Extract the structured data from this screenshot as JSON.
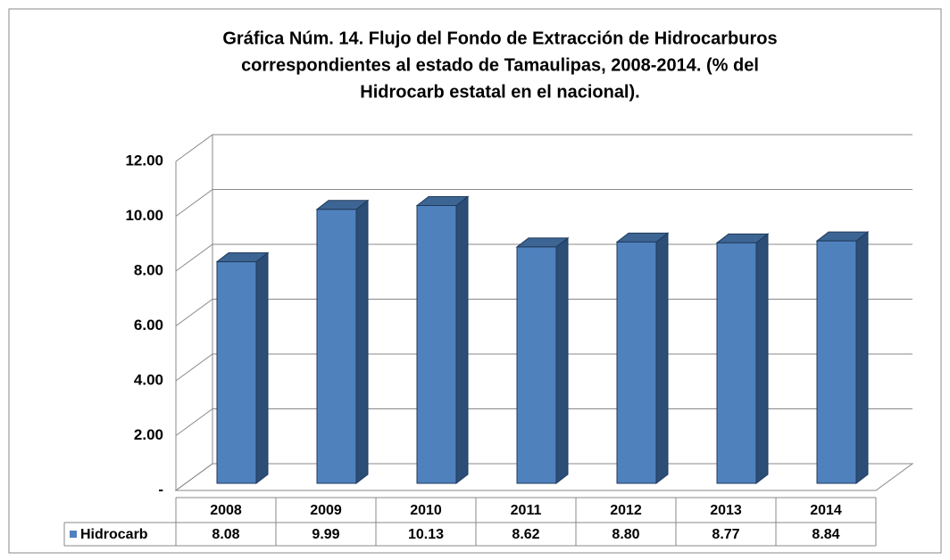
{
  "chart_data": {
    "type": "bar3d",
    "title": [
      "Gráfica Núm. 14. Flujo del Fondo de Extracción de Hidrocarburos",
      "correspondientes al estado de Tamaulipas, 2008-2014. (% del",
      "Hidrocarb estatal en el nacional)."
    ],
    "categories": [
      "2008",
      "2009",
      "2010",
      "2011",
      "2012",
      "2013",
      "2014"
    ],
    "series": [
      {
        "name": "Hidrocarb",
        "color": "#4f81bd",
        "values": [
          8.08,
          9.99,
          10.13,
          8.62,
          8.8,
          8.77,
          8.84
        ],
        "value_labels": [
          "8.08",
          "9.99",
          "10.13",
          "8.62",
          "8.80",
          "8.77",
          "8.84"
        ]
      }
    ],
    "ylim": [
      0,
      12
    ],
    "yticks": [
      {
        "value": 0,
        "label": "-"
      },
      {
        "value": 2,
        "label": "2.00"
      },
      {
        "value": 4,
        "label": "4.00"
      },
      {
        "value": 6,
        "label": "6.00"
      },
      {
        "value": 8,
        "label": "8.00"
      },
      {
        "value": 10,
        "label": "10.00"
      },
      {
        "value": 12,
        "label": "12.00"
      }
    ],
    "grid": true
  }
}
